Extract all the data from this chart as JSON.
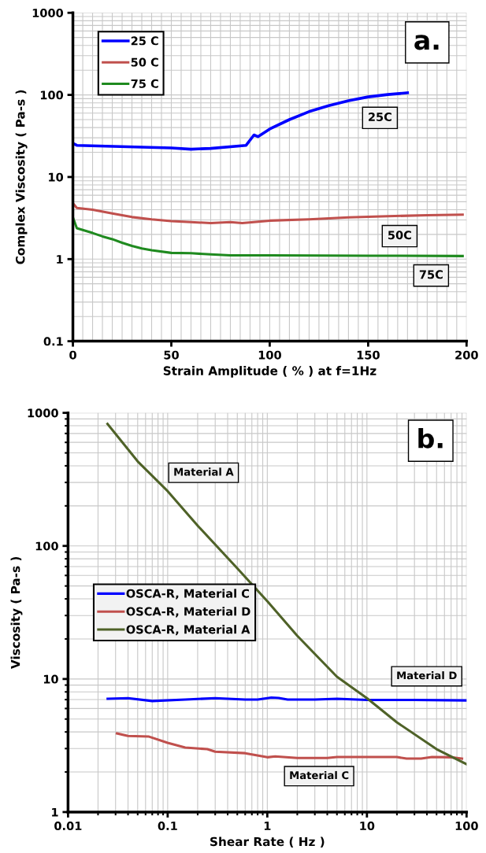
{
  "chart_data": [
    {
      "type": "line",
      "xlabel": "Strain Amplitude ( % ) at f=1Hz",
      "ylabel": "Complex Viscosity ( Pa-s )",
      "log": "y",
      "grid": true,
      "legend": "top left",
      "line_style": "solid",
      "marker": "none",
      "xlim": [
        0,
        200
      ],
      "xticks": [
        0,
        50,
        100,
        150,
        200
      ],
      "ylim": [
        0.1,
        1000
      ],
      "yticks": [
        0.1,
        1,
        10,
        100,
        1000
      ],
      "series": [
        {
          "name": "25 C",
          "color": "#0000ff",
          "x": [
            0,
            2,
            50,
            60,
            70,
            88,
            92,
            94,
            100,
            110,
            120,
            130,
            140,
            150,
            160,
            170
          ],
          "values": [
            25.7,
            24.3,
            22.6,
            21.8,
            22.3,
            24.3,
            32.5,
            31,
            38.4,
            50,
            62.6,
            74,
            85,
            94.6,
            101,
            106
          ]
        },
        {
          "name": "50 C",
          "color": "#c0504d",
          "x": [
            0,
            2,
            10,
            20,
            30,
            40,
            50,
            60,
            70,
            80,
            86,
            100,
            120,
            140,
            160,
            180,
            198
          ],
          "values": [
            4.79,
            4.2,
            4.0,
            3.6,
            3.25,
            3.05,
            2.9,
            2.82,
            2.75,
            2.82,
            2.75,
            2.94,
            3.05,
            3.22,
            3.33,
            3.42,
            3.48
          ]
        },
        {
          "name": "75 C",
          "color": "#1f8a1f",
          "x": [
            0,
            2,
            10,
            15,
            20,
            25,
            30,
            35,
            40,
            50,
            60,
            70,
            80,
            100,
            150,
            198
          ],
          "values": [
            3.22,
            2.38,
            2.08,
            1.89,
            1.75,
            1.58,
            1.45,
            1.35,
            1.28,
            1.19,
            1.18,
            1.14,
            1.11,
            1.11,
            1.1,
            1.09
          ]
        }
      ],
      "annotations": [
        "a.",
        "25C",
        "50C",
        "75C"
      ]
    },
    {
      "type": "line",
      "xlabel": "Shear Rate ( Hz )",
      "ylabel": "Viscosity ( Pa-s )",
      "log": "xy",
      "grid": true,
      "legend": "left",
      "line_style": "solid",
      "marker": "none",
      "xlim": [
        0.01,
        100
      ],
      "xticks": [
        0.01,
        0.1,
        1,
        10,
        100
      ],
      "ylim": [
        1,
        1000
      ],
      "yticks": [
        1,
        10,
        100,
        1000
      ],
      "series": [
        {
          "name": "OSCA-R, Material C",
          "color": "#0000ff",
          "x": [
            0.025,
            0.04,
            0.07,
            0.15,
            0.3,
            0.6,
            0.8,
            1.1,
            1.3,
            1.6,
            3,
            5,
            10,
            30,
            100
          ],
          "values": [
            7.1,
            7.18,
            6.83,
            7.0,
            7.18,
            7.0,
            7.0,
            7.25,
            7.2,
            7.0,
            7.0,
            7.1,
            6.96,
            6.96,
            6.9
          ]
        },
        {
          "name": "OSCA-R, Material D",
          "color": "#c0504d",
          "x": [
            0.031,
            0.04,
            0.065,
            0.1,
            0.15,
            0.25,
            0.3,
            0.6,
            1,
            1.2,
            2,
            4,
            5,
            20,
            25,
            35,
            45,
            70,
            90
          ],
          "values": [
            3.9,
            3.73,
            3.69,
            3.31,
            3.05,
            2.97,
            2.84,
            2.77,
            2.58,
            2.62,
            2.55,
            2.55,
            2.59,
            2.59,
            2.52,
            2.52,
            2.59,
            2.58,
            2.52
          ]
        },
        {
          "name": "OSCA-R, Material A",
          "color": "#4f6228",
          "x": [
            0.0249,
            0.05,
            0.1,
            0.2,
            0.5,
            1,
            2,
            5,
            10,
            20,
            50,
            100
          ],
          "values": [
            826,
            432,
            258,
            142,
            67.9,
            38.4,
            21.1,
            10.4,
            7.17,
            4.72,
            2.97,
            2.29
          ]
        }
      ],
      "annotations": [
        "b.",
        "Material A",
        "Material D",
        "Material C"
      ]
    }
  ]
}
